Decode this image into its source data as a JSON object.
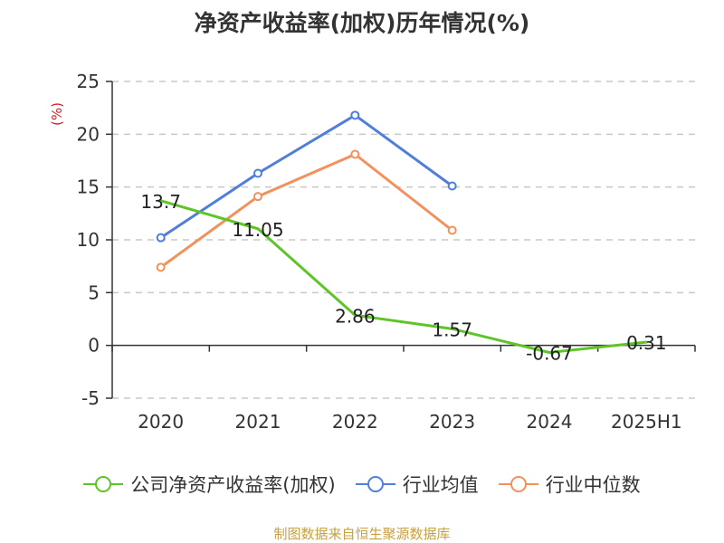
{
  "chart_data": {
    "type": "line",
    "title": "净资产收益率(加权)历年情况(%)",
    "ylabel": "(%)",
    "categories": [
      "2020",
      "2021",
      "2022",
      "2023",
      "2024",
      "2025H1"
    ],
    "ylim": [
      -5,
      25
    ],
    "yticks": [
      -5,
      0,
      5,
      10,
      15,
      20,
      25
    ],
    "grid": true,
    "legend_position": "bottom",
    "series": [
      {
        "name": "公司净资产收益率(加权)",
        "color": "#5ec427",
        "values": [
          13.7,
          11.05,
          2.86,
          1.57,
          -0.67,
          0.31
        ],
        "labels": [
          "13.7",
          "11.05",
          "2.86",
          "1.57",
          "-0.67",
          "0.31"
        ]
      },
      {
        "name": "行业均值",
        "color": "#4f7fdb",
        "values": [
          10.2,
          16.3,
          21.8,
          15.1,
          null,
          null
        ]
      },
      {
        "name": "行业中位数",
        "color": "#f4905a",
        "values": [
          7.4,
          14.1,
          18.1,
          10.9,
          null,
          null
        ]
      }
    ]
  },
  "footer": {
    "source": "制图数据来自恒生聚源数据库"
  }
}
